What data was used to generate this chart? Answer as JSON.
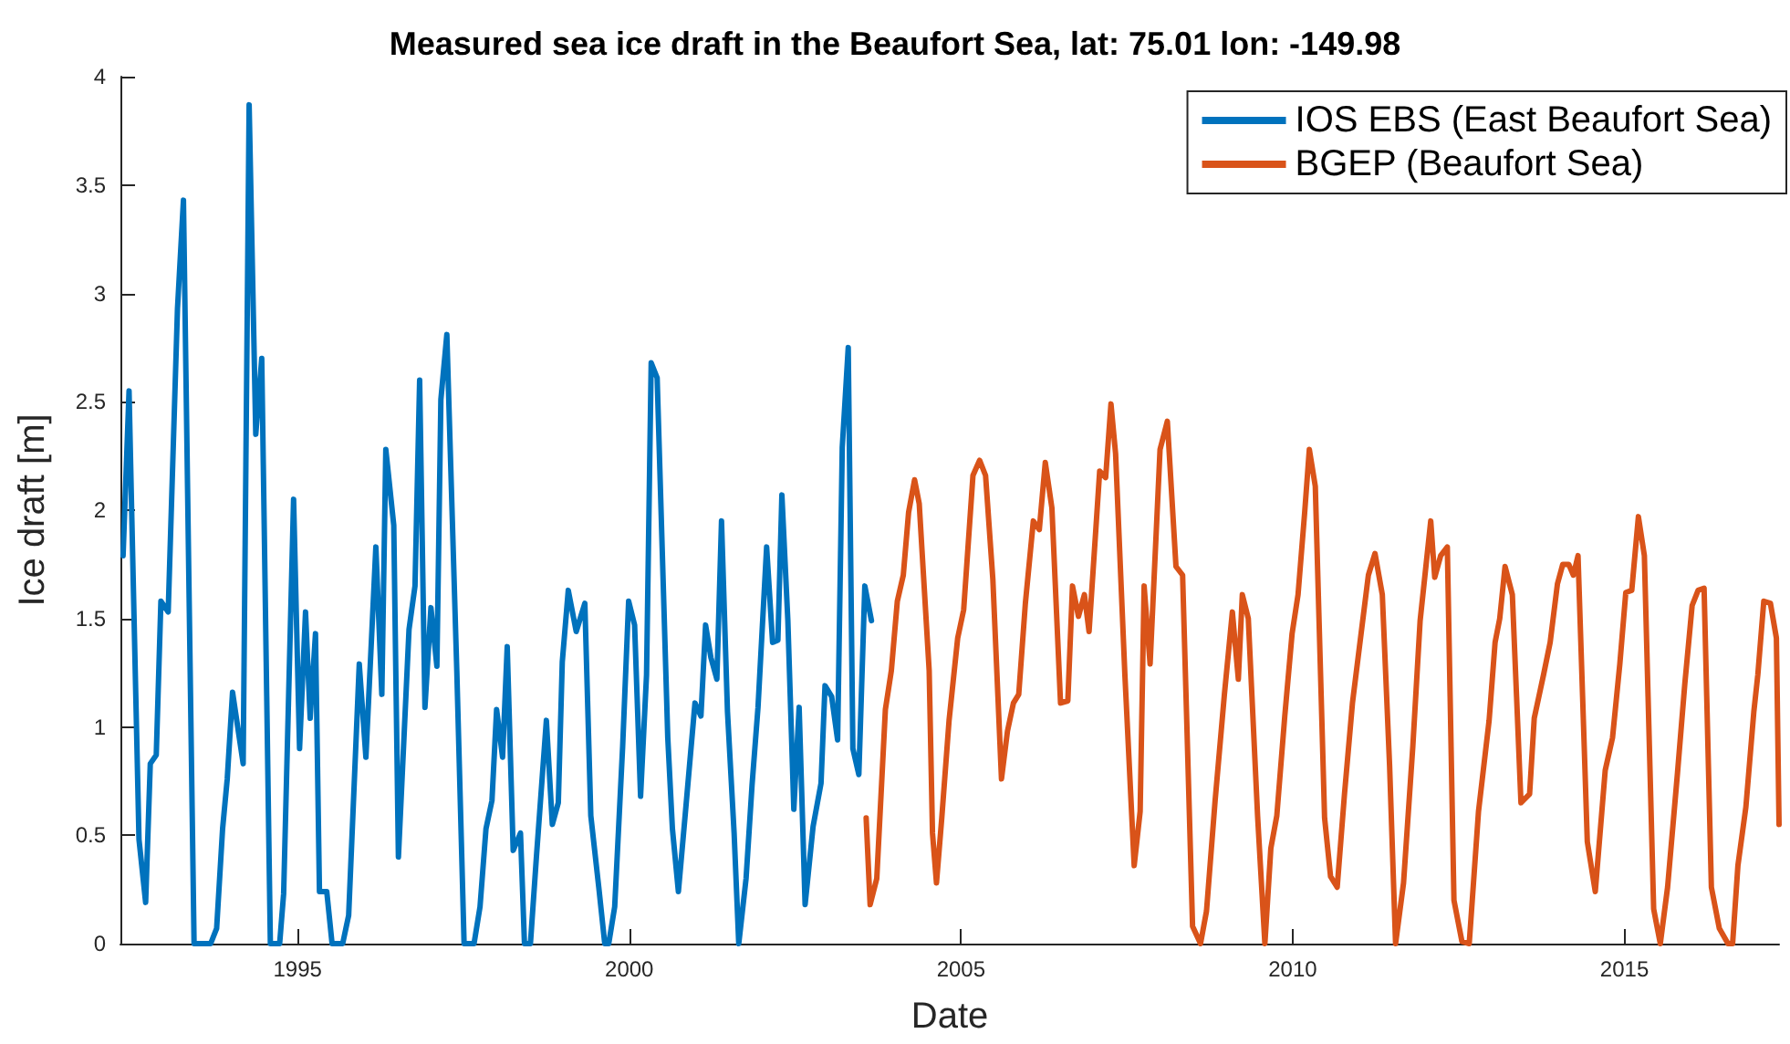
{
  "chart_data": {
    "type": "line",
    "title": "Measured sea ice draft in the Beaufort Sea, lat: 75.01 lon: -149.98",
    "xlabel": "Date",
    "ylabel": "Ice draft [m]",
    "xlim": [
      1992.33,
      2017.33
    ],
    "xticks": [
      1995,
      2000,
      2005,
      2010,
      2015
    ],
    "ylim": [
      0,
      4
    ],
    "yticks": [
      0,
      0.5,
      1,
      1.5,
      2,
      2.5,
      3,
      3.5,
      4
    ],
    "grid": false,
    "legend": "top right",
    "marker": "none",
    "line_style": "solid",
    "series": [
      {
        "name": "IOS EBS (East Beaufort Sea)",
        "color": "#0072bd",
        "x": [
          1992.37,
          1992.46,
          1992.5,
          1992.61,
          1992.71,
          1992.78,
          1992.87,
          1992.94,
          1993.05,
          1993.19,
          1993.28,
          1993.44,
          1993.69,
          1993.78,
          1993.87,
          1993.94,
          1994.02,
          1994.18,
          1994.27,
          1994.37,
          1994.46,
          1994.59,
          1994.73,
          1994.79,
          1994.94,
          1995.03,
          1995.12,
          1995.19,
          1995.27,
          1995.33,
          1995.44,
          1995.52,
          1995.68,
          1995.77,
          1995.93,
          1996.03,
          1996.18,
          1996.27,
          1996.33,
          1996.45,
          1996.52,
          1996.68,
          1996.77,
          1996.84,
          1996.92,
          1997.01,
          1997.1,
          1997.16,
          1997.25,
          1997.4,
          1997.51,
          1997.66,
          1997.75,
          1997.84,
          1997.93,
          1998.0,
          1998.09,
          1998.16,
          1998.25,
          1998.36,
          1998.42,
          1998.51,
          1998.6,
          1998.75,
          1998.84,
          1998.93,
          1998.99,
          1999.08,
          1999.2,
          1999.33,
          1999.42,
          1999.54,
          1999.63,
          1999.69,
          1999.78,
          1999.9,
          1999.99,
          2000.08,
          2000.17,
          2000.26,
          2000.33,
          2000.42,
          2000.58,
          2000.65,
          2000.74,
          2000.85,
          2000.99,
          2001.08,
          2001.15,
          2001.23,
          2001.32,
          2001.39,
          2001.48,
          2001.58,
          2001.65,
          2001.76,
          2001.85,
          2001.94,
          2002.07,
          2002.16,
          2002.24,
          2002.3,
          2002.39,
          2002.48,
          2002.56,
          2002.65,
          2002.77,
          2002.89,
          2002.95,
          2003.05,
          2003.14,
          2003.21,
          2003.3,
          2003.37,
          2003.46,
          2003.55,
          2003.65
        ],
        "values": [
          1.79,
          2.55,
          1.99,
          0.48,
          0.19,
          0.83,
          0.87,
          1.58,
          1.53,
          2.93,
          3.43,
          0,
          0,
          0.07,
          0.53,
          0.76,
          1.16,
          0.83,
          3.87,
          2.35,
          2.7,
          0,
          0,
          0.23,
          2.05,
          0.9,
          1.53,
          1.04,
          1.43,
          0.24,
          0.24,
          0,
          0,
          0.13,
          1.29,
          0.86,
          1.83,
          1.15,
          2.28,
          1.93,
          0.4,
          1.45,
          1.65,
          2.6,
          1.09,
          1.55,
          1.28,
          2.51,
          2.81,
          1.26,
          0,
          0,
          0.17,
          0.53,
          0.66,
          1.08,
          0.86,
          1.37,
          0.43,
          0.51,
          0,
          0,
          0.4,
          1.03,
          0.55,
          0.65,
          1.3,
          1.63,
          1.44,
          1.57,
          0.59,
          0.26,
          0,
          0,
          0.17,
          0.91,
          1.58,
          1.47,
          0.68,
          1.24,
          2.68,
          2.61,
          0.95,
          0.53,
          0.24,
          0.62,
          1.11,
          1.05,
          1.47,
          1.32,
          1.22,
          1.95,
          1.07,
          0.51,
          0,
          0.3,
          0.73,
          1.09,
          1.83,
          1.39,
          1.4,
          2.07,
          1.49,
          0.62,
          1.09,
          0.18,
          0.54,
          0.74,
          1.19,
          1.14,
          0.94,
          2.29,
          2.75,
          0.9,
          0.78,
          1.65,
          1.49
        ]
      },
      {
        "name": "BGEP (Beaufort Sea)",
        "color": "#d95319",
        "x": [
          2003.57,
          2003.63,
          2003.73,
          2003.86,
          2003.95,
          2004.04,
          2004.13,
          2004.21,
          2004.3,
          2004.37,
          2004.52,
          2004.57,
          2004.63,
          2004.71,
          2004.82,
          2004.95,
          2005.04,
          2005.18,
          2005.28,
          2005.37,
          2005.48,
          2005.61,
          2005.7,
          2005.79,
          2005.87,
          2005.97,
          2006.09,
          2006.18,
          2006.27,
          2006.37,
          2006.5,
          2006.61,
          2006.68,
          2006.77,
          2006.86,
          2006.93,
          2007.09,
          2007.18,
          2007.26,
          2007.33,
          2007.47,
          2007.61,
          2007.7,
          2007.76,
          2007.85,
          2008.0,
          2008.11,
          2008.24,
          2008.34,
          2008.49,
          2008.61,
          2008.7,
          2008.83,
          2008.97,
          2009.09,
          2009.18,
          2009.24,
          2009.33,
          2009.47,
          2009.58,
          2009.67,
          2009.76,
          2009.88,
          2009.99,
          2010.08,
          2010.18,
          2010.25,
          2010.34,
          2010.48,
          2010.57,
          2010.67,
          2010.78,
          2010.9,
          2011.03,
          2011.14,
          2011.24,
          2011.35,
          2011.46,
          2011.55,
          2011.67,
          2011.81,
          2011.92,
          2012.08,
          2012.14,
          2012.23,
          2012.33,
          2012.43,
          2012.55,
          2012.66,
          2012.8,
          2012.96,
          2013.05,
          2013.12,
          2013.2,
          2013.31,
          2013.44,
          2013.57,
          2013.64,
          2013.78,
          2013.88,
          2013.99,
          2014.07,
          2014.16,
          2014.23,
          2014.3,
          2014.44,
          2014.56,
          2014.71,
          2014.82,
          2014.93,
          2015.02,
          2015.11,
          2015.21,
          2015.3,
          2015.44,
          2015.54,
          2015.65,
          2015.8,
          2015.91,
          2016.02,
          2016.11,
          2016.2,
          2016.31,
          2016.43,
          2016.56,
          2016.63,
          2016.71,
          2016.83,
          2016.95,
          2017.01,
          2017.1,
          2017.2,
          2017.29,
          2017.33
        ],
        "values": [
          0.58,
          0.18,
          0.3,
          1.08,
          1.26,
          1.58,
          1.7,
          1.99,
          2.14,
          2.03,
          1.26,
          0.51,
          0.28,
          0.58,
          1.03,
          1.41,
          1.54,
          2.16,
          2.23,
          2.16,
          1.68,
          0.76,
          0.98,
          1.11,
          1.15,
          1.57,
          1.95,
          1.91,
          2.22,
          2.01,
          1.11,
          1.12,
          1.65,
          1.51,
          1.61,
          1.44,
          2.18,
          2.15,
          2.49,
          2.26,
          1.24,
          0.36,
          0.61,
          1.65,
          1.29,
          2.28,
          2.41,
          1.74,
          1.7,
          0.08,
          0,
          0.15,
          0.66,
          1.15,
          1.53,
          1.22,
          1.61,
          1.5,
          0.59,
          0,
          0.44,
          0.59,
          1.05,
          1.43,
          1.61,
          1.99,
          2.28,
          2.11,
          0.58,
          0.31,
          0.26,
          0.69,
          1.11,
          1.43,
          1.7,
          1.8,
          1.61,
          0.82,
          0,
          0.28,
          0.91,
          1.49,
          1.95,
          1.69,
          1.79,
          1.83,
          0.2,
          0.01,
          0,
          0.61,
          1.03,
          1.39,
          1.5,
          1.74,
          1.61,
          0.65,
          0.69,
          1.04,
          1.24,
          1.39,
          1.66,
          1.75,
          1.75,
          1.7,
          1.79,
          0.47,
          0.24,
          0.8,
          0.95,
          1.29,
          1.62,
          1.63,
          1.97,
          1.79,
          0.16,
          0,
          0.26,
          0.79,
          1.2,
          1.56,
          1.63,
          1.64,
          0.26,
          0.07,
          0,
          0,
          0.36,
          0.63,
          1.07,
          1.24,
          1.58,
          1.57,
          1.41,
          0.55
        ]
      }
    ]
  }
}
